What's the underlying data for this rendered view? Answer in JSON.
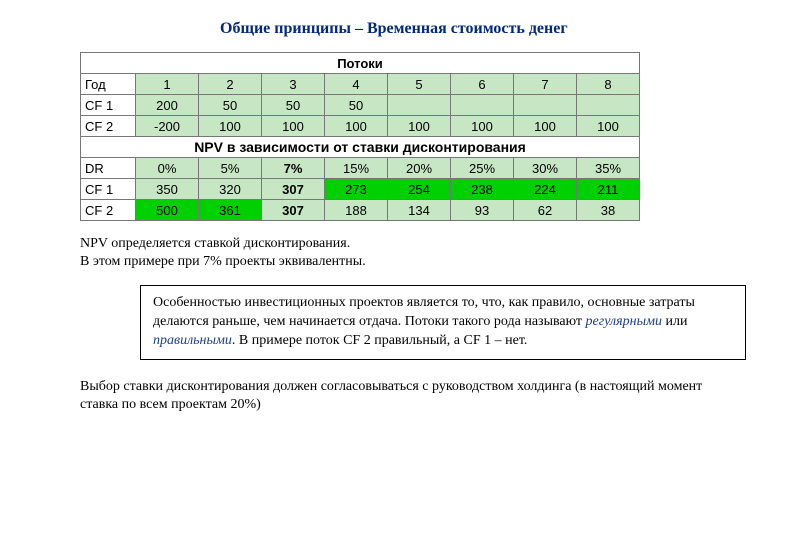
{
  "title": "Общие принципы – Временная стоимость денег",
  "table1": {
    "header": "Потоки",
    "yearLabel": "Год",
    "years": [
      "1",
      "2",
      "3",
      "4",
      "5",
      "6",
      "7",
      "8"
    ],
    "cf1Label": "CF 1",
    "cf1": [
      "200",
      "50",
      "50",
      "50",
      "",
      "",
      "",
      ""
    ],
    "cf2Label": "CF 2",
    "cf2": [
      "-200",
      "100",
      "100",
      "100",
      "100",
      "100",
      "100",
      "100"
    ],
    "lightBg": "#c7e7c4"
  },
  "table2": {
    "header": "NPV в зависимости от ставки дисконтирования",
    "drLabel": "DR",
    "rates": [
      "0%",
      "5%",
      "7%",
      "15%",
      "20%",
      "25%",
      "30%",
      "35%"
    ],
    "cf1Label": "CF 1",
    "cf1": [
      "350",
      "320",
      "307",
      "273",
      "254",
      "238",
      "224",
      "211"
    ],
    "cf1_bg": [
      "light",
      "light",
      "light",
      "bright",
      "bright",
      "bright",
      "bright",
      "bright"
    ],
    "cf2Label": "CF 2",
    "cf2": [
      "500",
      "361",
      "307",
      "188",
      "134",
      "93",
      "62",
      "38"
    ],
    "cf2_bg": [
      "bright",
      "bright",
      "light",
      "light",
      "light",
      "light",
      "light",
      "light"
    ],
    "rates_bold_idx": 2
  },
  "para1_a": "NPV определяется ставкой дисконтирования.",
  "para1_b": "В этом примере при 7% проекты эквивалентны.",
  "box_plain1": "Особенностью инвестиционных проектов является то, что, как правило, основные затраты делаются раньше, чем начинается отдача. Потоки такого рода называют ",
  "box_em1": "регулярными",
  "box_plain2": " или ",
  "box_em2": "правильными",
  "box_plain3": ". В примере поток CF 2 правильный, а CF 1 – нет.",
  "footer": "Выбор ставки дисконтирования должен согласовываться с руководством холдинга (в настоящий момент ставка по всем проектам 20%)"
}
